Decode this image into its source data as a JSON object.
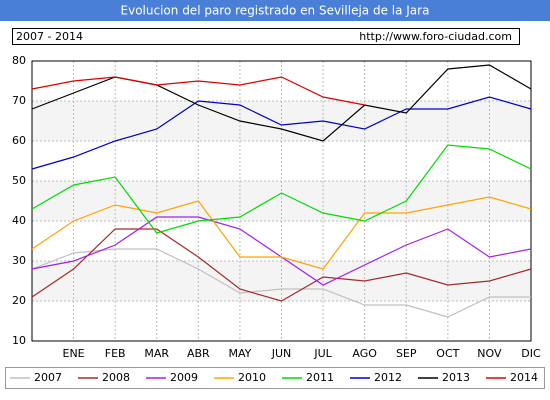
{
  "chart_data": {
    "type": "line",
    "title": "Evolucion del paro registrado en Sevilleja de la Jara",
    "subtitle": "2007 - 2014",
    "source": "http://www.foro-ciudad.com",
    "categories": [
      null,
      "ENE",
      "FEB",
      "MAR",
      "ABR",
      "MAY",
      "JUN",
      "JUL",
      "AGO",
      "SEP",
      "OCT",
      "NOV",
      "DIC"
    ],
    "ylim": [
      10,
      80
    ],
    "yticks": [
      10,
      20,
      30,
      40,
      50,
      60,
      70,
      80
    ],
    "grid": true,
    "series": [
      {
        "name": "2007",
        "color": "#c0c0c0",
        "values": [
          28,
          32,
          33,
          33,
          28,
          22,
          23,
          23,
          19,
          19,
          16,
          21,
          21
        ]
      },
      {
        "name": "2008",
        "color": "#a52a2a",
        "values": [
          21,
          28,
          38,
          38,
          31,
          23,
          20,
          26,
          25,
          27,
          24,
          25,
          28
        ]
      },
      {
        "name": "2009",
        "color": "#a020f0",
        "values": [
          28,
          30,
          34,
          41,
          41,
          38,
          31,
          24,
          29,
          34,
          38,
          31,
          33
        ]
      },
      {
        "name": "2010",
        "color": "#ffa500",
        "values": [
          33,
          40,
          44,
          42,
          45,
          31,
          31,
          28,
          42,
          42,
          44,
          46,
          43
        ]
      },
      {
        "name": "2011",
        "color": "#00dd00",
        "values": [
          43,
          49,
          51,
          37,
          40,
          41,
          47,
          42,
          40,
          45,
          59,
          58,
          53
        ]
      },
      {
        "name": "2012",
        "color": "#0000cc",
        "values": [
          53,
          56,
          60,
          63,
          70,
          69,
          64,
          65,
          63,
          68,
          68,
          71,
          68
        ]
      },
      {
        "name": "2013",
        "color": "#000000",
        "values": [
          68,
          72,
          76,
          74,
          69,
          65,
          63,
          60,
          69,
          67,
          78,
          79,
          73
        ]
      },
      {
        "name": "2014",
        "color": "#dd0000",
        "values": [
          73,
          75,
          76,
          74,
          75,
          74,
          76,
          71,
          69,
          null,
          null,
          null,
          null
        ]
      }
    ]
  }
}
